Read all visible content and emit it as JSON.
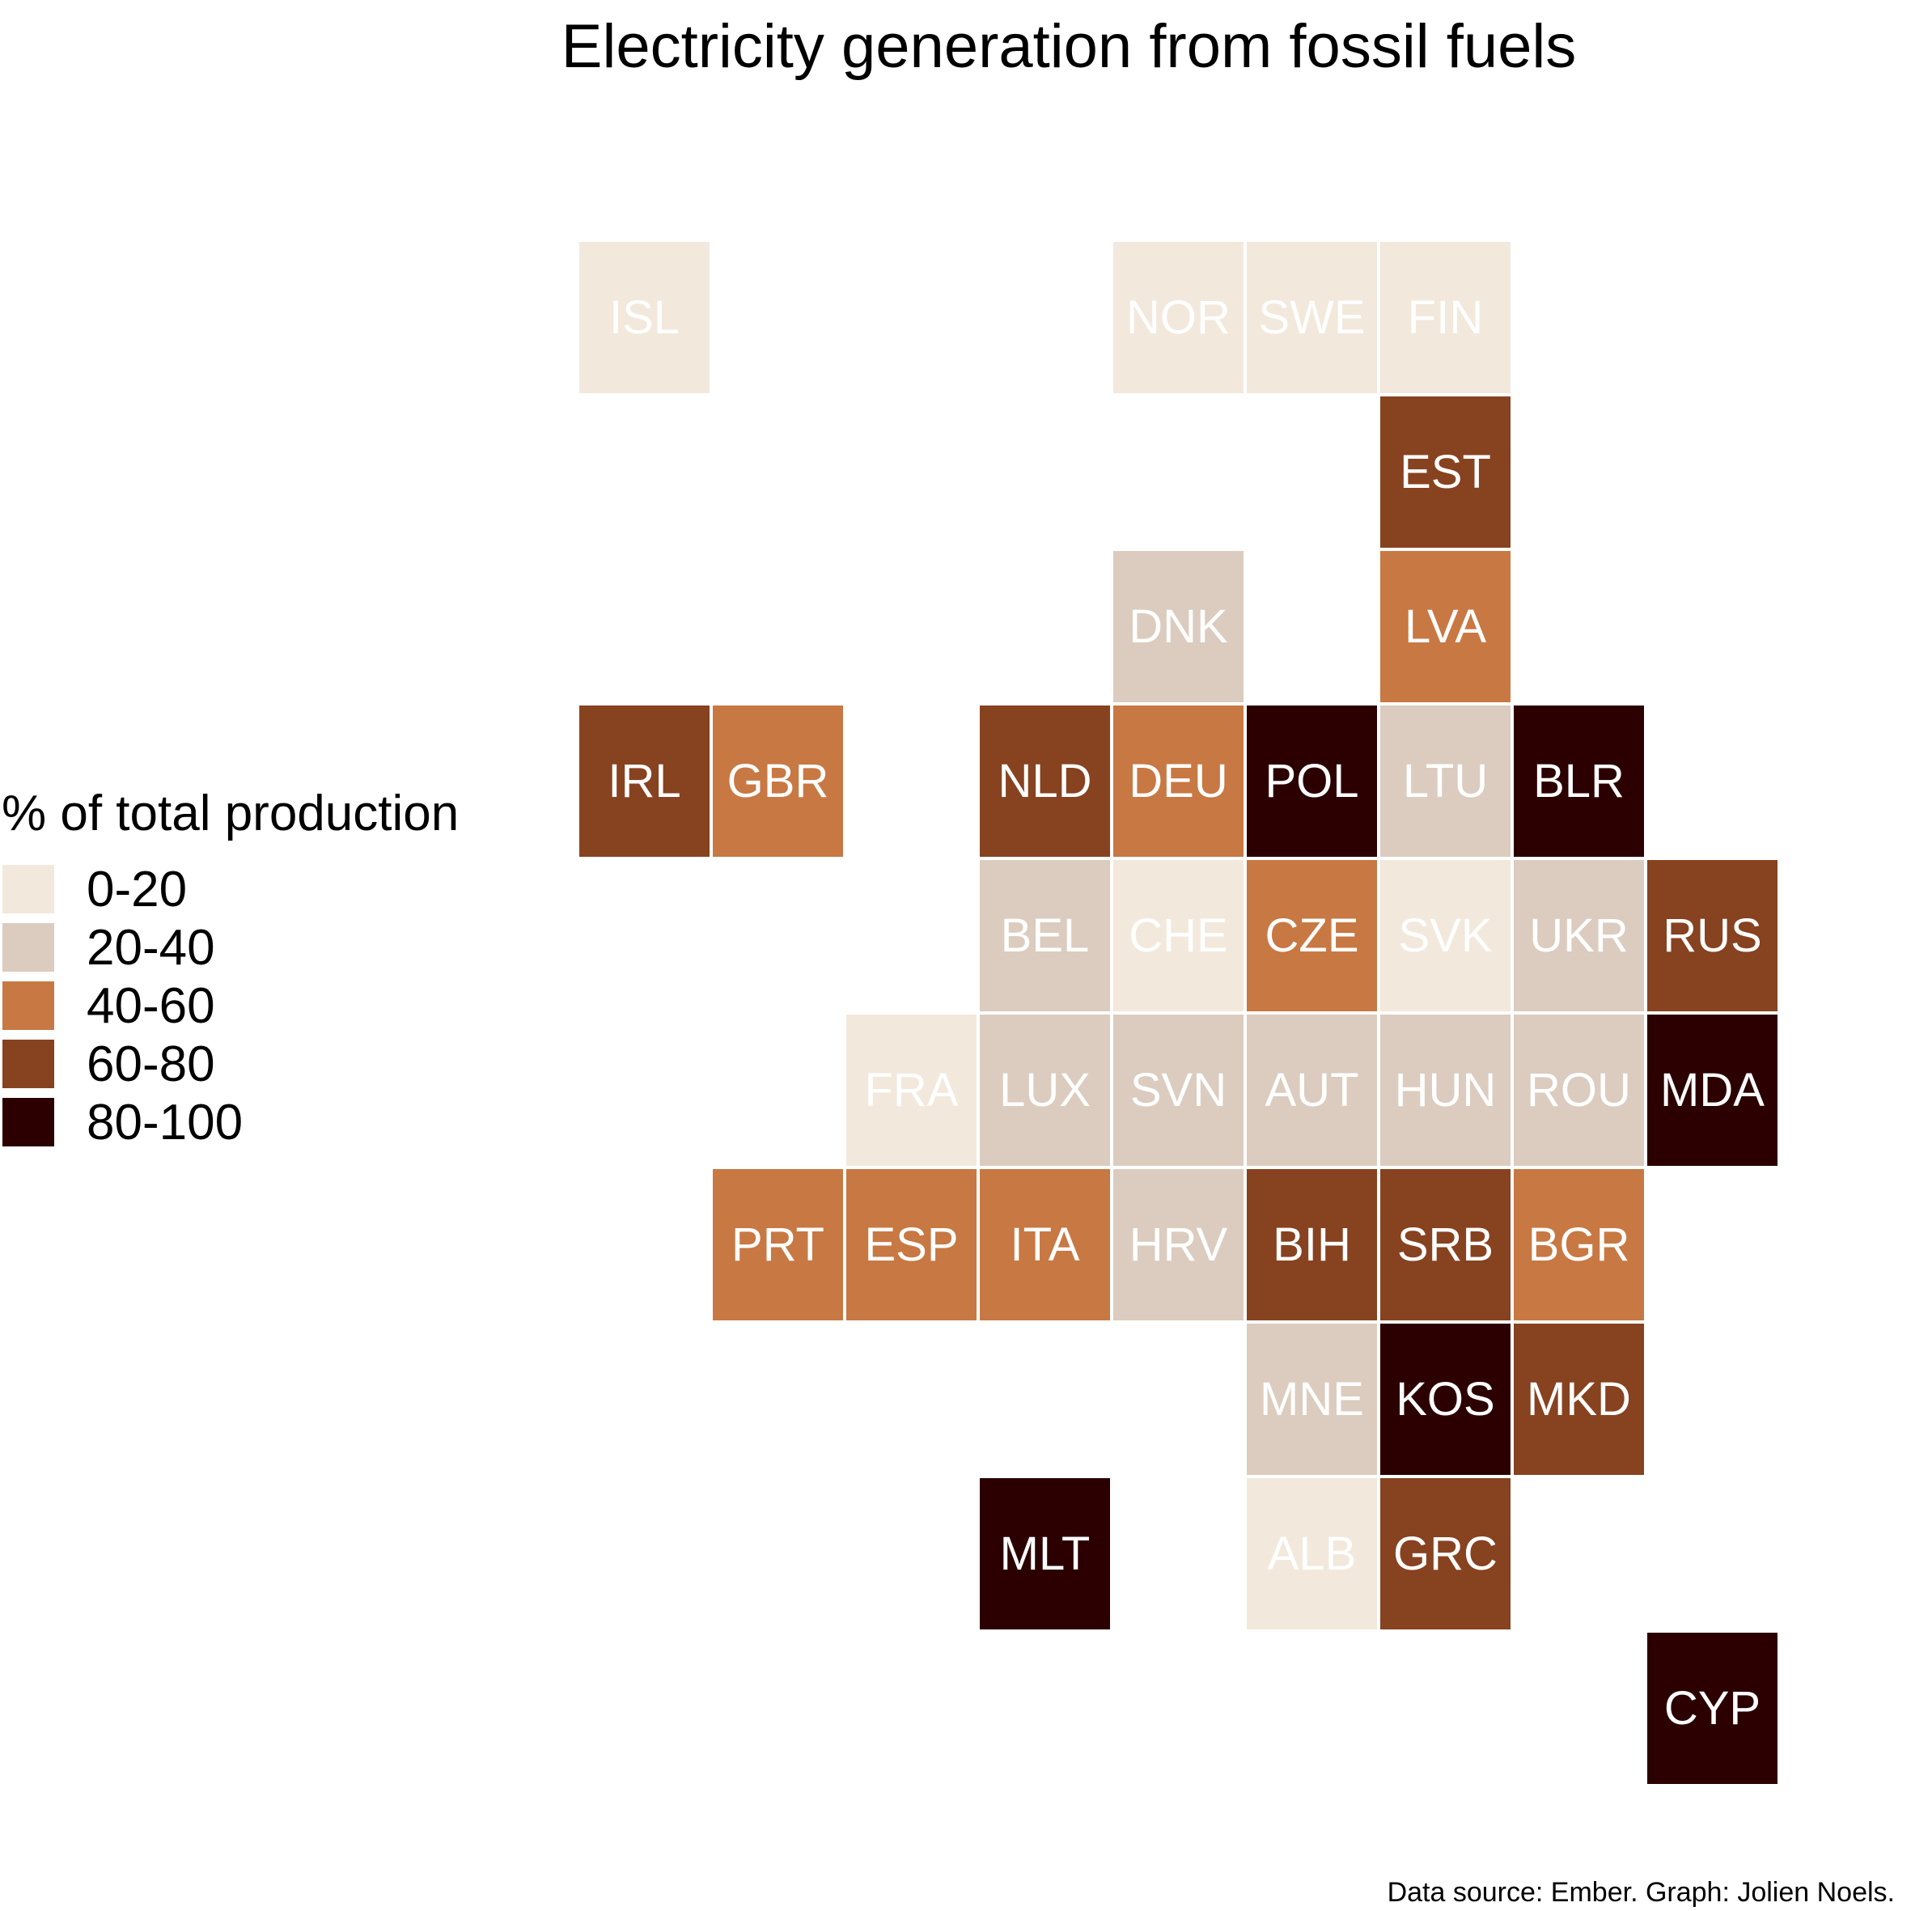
{
  "title": "Electricity generation from fossil fuels",
  "caption": "Data source: Ember. Graph: Jolien Noels.",
  "legend": {
    "title": "% of total production",
    "items": [
      {
        "label": "0-20",
        "color": "#f2e8dc"
      },
      {
        "label": "20-40",
        "color": "#dbccbf"
      },
      {
        "label": "40-60",
        "color": "#c87843"
      },
      {
        "label": "60-80",
        "color": "#874220"
      },
      {
        "label": "80-100",
        "color": "#2c0000"
      }
    ]
  },
  "chart_data": {
    "type": "heatmap",
    "title": "Electricity generation from fossil fuels",
    "legend_title": "% of total production",
    "legend_position": "left",
    "categories": [
      "0-20",
      "20-40",
      "40-60",
      "60-80",
      "80-100"
    ],
    "tiles": [
      {
        "code": "ISL",
        "col": 0,
        "row": 0,
        "bin": "0-20"
      },
      {
        "code": "NOR",
        "col": 4,
        "row": 0,
        "bin": "0-20"
      },
      {
        "code": "SWE",
        "col": 5,
        "row": 0,
        "bin": "0-20"
      },
      {
        "code": "FIN",
        "col": 6,
        "row": 0,
        "bin": "0-20"
      },
      {
        "code": "EST",
        "col": 6,
        "row": 1,
        "bin": "60-80"
      },
      {
        "code": "DNK",
        "col": 4,
        "row": 2,
        "bin": "20-40"
      },
      {
        "code": "LVA",
        "col": 6,
        "row": 2,
        "bin": "40-60"
      },
      {
        "code": "IRL",
        "col": 0,
        "row": 3,
        "bin": "60-80"
      },
      {
        "code": "GBR",
        "col": 1,
        "row": 3,
        "bin": "40-60"
      },
      {
        "code": "NLD",
        "col": 3,
        "row": 3,
        "bin": "60-80"
      },
      {
        "code": "DEU",
        "col": 4,
        "row": 3,
        "bin": "40-60"
      },
      {
        "code": "POL",
        "col": 5,
        "row": 3,
        "bin": "80-100"
      },
      {
        "code": "LTU",
        "col": 6,
        "row": 3,
        "bin": "20-40"
      },
      {
        "code": "BLR",
        "col": 7,
        "row": 3,
        "bin": "80-100"
      },
      {
        "code": "BEL",
        "col": 3,
        "row": 4,
        "bin": "20-40"
      },
      {
        "code": "CHE",
        "col": 4,
        "row": 4,
        "bin": "0-20"
      },
      {
        "code": "CZE",
        "col": 5,
        "row": 4,
        "bin": "40-60"
      },
      {
        "code": "SVK",
        "col": 6,
        "row": 4,
        "bin": "0-20"
      },
      {
        "code": "UKR",
        "col": 7,
        "row": 4,
        "bin": "20-40"
      },
      {
        "code": "RUS",
        "col": 8,
        "row": 4,
        "bin": "60-80"
      },
      {
        "code": "FRA",
        "col": 2,
        "row": 5,
        "bin": "0-20"
      },
      {
        "code": "LUX",
        "col": 3,
        "row": 5,
        "bin": "20-40"
      },
      {
        "code": "SVN",
        "col": 4,
        "row": 5,
        "bin": "20-40"
      },
      {
        "code": "AUT",
        "col": 5,
        "row": 5,
        "bin": "20-40"
      },
      {
        "code": "HUN",
        "col": 6,
        "row": 5,
        "bin": "20-40"
      },
      {
        "code": "ROU",
        "col": 7,
        "row": 5,
        "bin": "20-40"
      },
      {
        "code": "MDA",
        "col": 8,
        "row": 5,
        "bin": "80-100"
      },
      {
        "code": "PRT",
        "col": 1,
        "row": 6,
        "bin": "40-60"
      },
      {
        "code": "ESP",
        "col": 2,
        "row": 6,
        "bin": "40-60"
      },
      {
        "code": "ITA",
        "col": 3,
        "row": 6,
        "bin": "40-60"
      },
      {
        "code": "HRV",
        "col": 4,
        "row": 6,
        "bin": "20-40"
      },
      {
        "code": "BIH",
        "col": 5,
        "row": 6,
        "bin": "60-80"
      },
      {
        "code": "SRB",
        "col": 6,
        "row": 6,
        "bin": "60-80"
      },
      {
        "code": "BGR",
        "col": 7,
        "row": 6,
        "bin": "40-60"
      },
      {
        "code": "MNE",
        "col": 5,
        "row": 7,
        "bin": "20-40"
      },
      {
        "code": "KOS",
        "col": 6,
        "row": 7,
        "bin": "80-100"
      },
      {
        "code": "MKD",
        "col": 7,
        "row": 7,
        "bin": "60-80"
      },
      {
        "code": "MLT",
        "col": 3,
        "row": 8,
        "bin": "80-100"
      },
      {
        "code": "ALB",
        "col": 5,
        "row": 8,
        "bin": "0-20"
      },
      {
        "code": "GRC",
        "col": 6,
        "row": 8,
        "bin": "60-80"
      },
      {
        "code": "CYP",
        "col": 8,
        "row": 9,
        "bin": "80-100"
      }
    ]
  }
}
